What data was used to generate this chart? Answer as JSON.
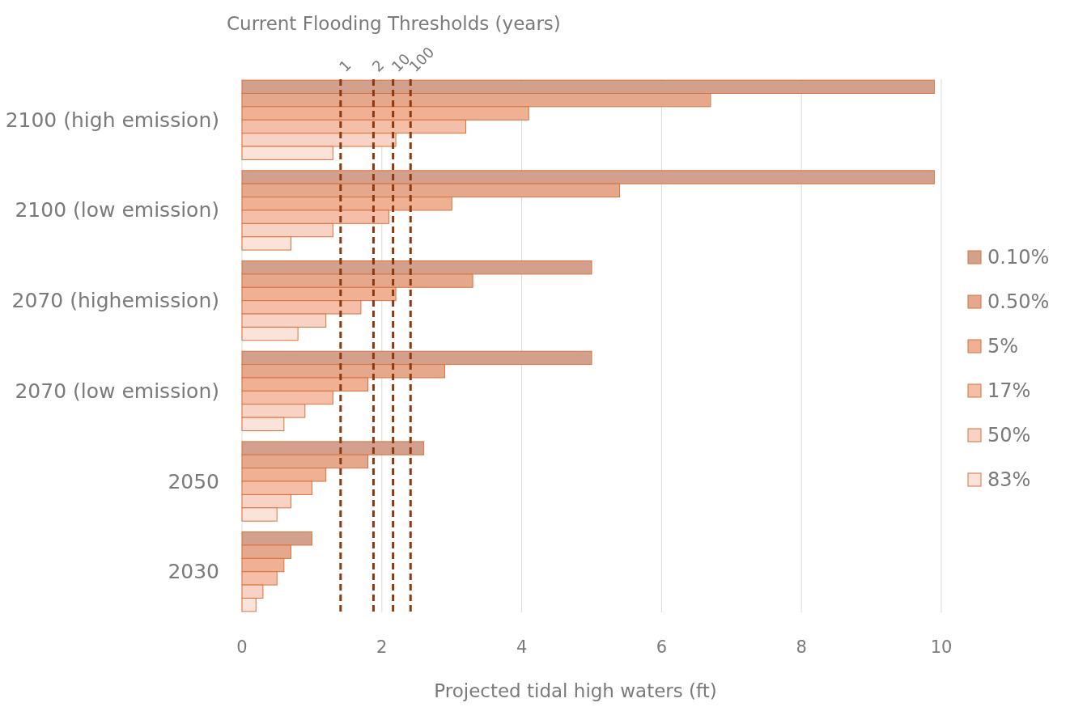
{
  "chart_data": {
    "type": "bar",
    "orientation": "horizontal",
    "title": "Current Flooding Thresholds (years)",
    "xlabel": "Projected tidal high waters  (ft)",
    "categories": [
      "2100 (high emission)",
      "2100 (low emission)",
      "2070 (highemission)",
      "2070 (low emission)",
      "2050",
      "2030"
    ],
    "series": [
      {
        "name": "0.10%",
        "color": "#d4a08e",
        "values": [
          9.9,
          9.9,
          5.0,
          5.0,
          2.6,
          1.0
        ]
      },
      {
        "name": "0.50%",
        "color": "#e6a88c",
        "values": [
          6.7,
          5.4,
          3.3,
          2.9,
          1.8,
          0.7
        ]
      },
      {
        "name": "5%",
        "color": "#f0b094",
        "values": [
          4.1,
          3.0,
          2.2,
          1.8,
          1.2,
          0.6
        ]
      },
      {
        "name": "17%",
        "color": "#f5bea8",
        "values": [
          3.2,
          2.1,
          1.7,
          1.3,
          1.0,
          0.5
        ]
      },
      {
        "name": "50%",
        "color": "#f8d2c4",
        "values": [
          2.2,
          1.3,
          1.2,
          0.9,
          0.7,
          0.3
        ]
      },
      {
        "name": "83%",
        "color": "#fbe3da",
        "values": [
          1.3,
          0.7,
          0.8,
          0.6,
          0.5,
          0.2
        ]
      }
    ],
    "xlim": [
      0,
      10
    ],
    "xticks": [
      0,
      2,
      4,
      6,
      8,
      10
    ],
    "grid": "x",
    "legend": "right",
    "ref_lines": [
      {
        "axis": "x",
        "value": 1.41,
        "color": "#8b3a0f",
        "line_style": "dashed"
      },
      {
        "axis": "x",
        "value": 1.88,
        "color": "#8b3a0f",
        "line_style": "dashed"
      },
      {
        "axis": "x",
        "value": 2.16,
        "color": "#8b3a0f",
        "line_style": "dashed"
      },
      {
        "axis": "x",
        "value": 2.41,
        "color": "#8b3a0f",
        "line_style": "dashed"
      }
    ],
    "annotations": [
      "1",
      "2",
      "10",
      "100"
    ]
  }
}
